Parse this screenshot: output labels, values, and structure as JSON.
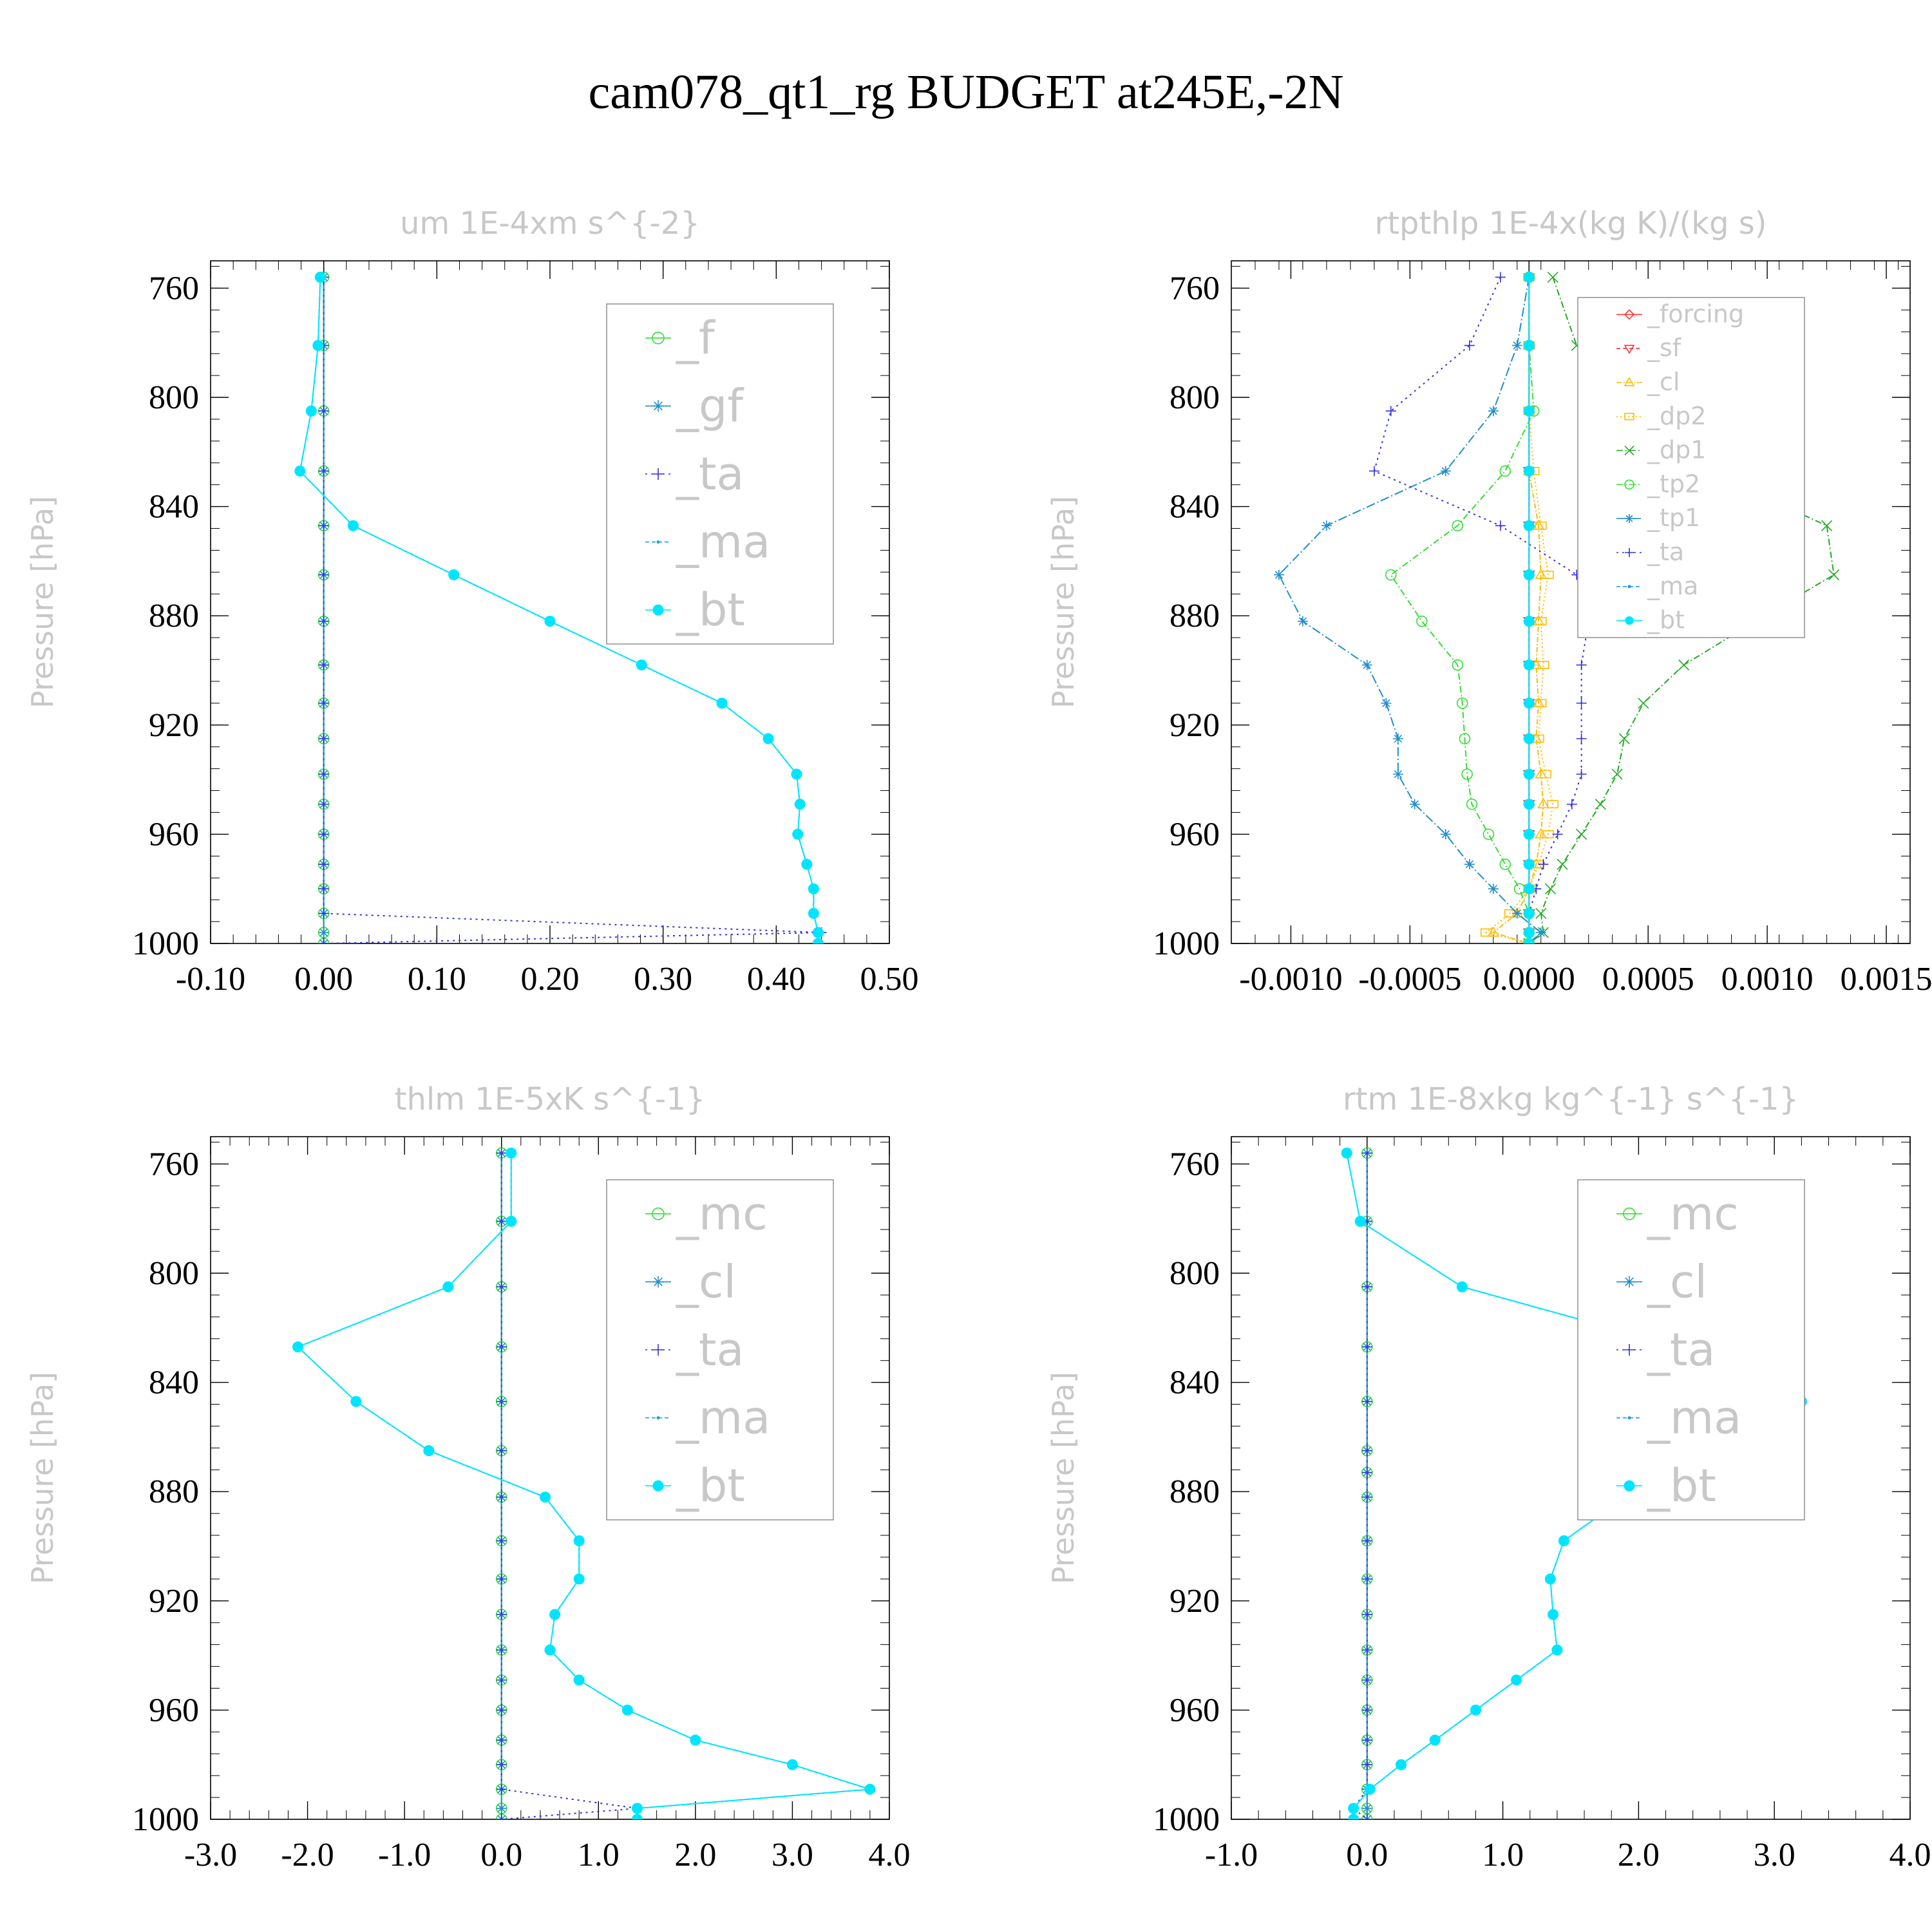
{
  "title": "cam078_qt1_rg  BUDGET at245E,-2N",
  "colors": {
    "f": "#33dd33",
    "gf": "#1f8fcf",
    "ta": "#3333dd",
    "ma": "#1aa0e0",
    "bt": "#00e5ff",
    "forcing": "#ff3333",
    "sf": "#ff3333",
    "cl_t": "#ffbb00",
    "dp2": "#ffbb00",
    "dp1": "#22aa22",
    "tp2": "#33dd33",
    "tp1": "#1f8fcf",
    "mc": "#33dd33",
    "cl": "#1f8fcf"
  },
  "chart_data": [
    {
      "type": "line",
      "title": "um  1E-4xm s^{-2}",
      "ylabel": "Pressure [hPa]",
      "xlim": [
        -0.1,
        0.5
      ],
      "ylim": [
        1000,
        750
      ],
      "xticks": [
        "-0.10",
        "0.00",
        "0.10",
        "0.20",
        "0.30",
        "0.40",
        "0.50"
      ],
      "yticks": [
        "760",
        "800",
        "840",
        "880",
        "920",
        "960",
        "1000"
      ],
      "y": [
        756,
        781,
        805,
        827,
        847,
        865,
        882,
        898,
        912,
        925,
        938,
        949,
        960,
        971,
        980,
        989,
        996,
        1000
      ],
      "series": [
        {
          "name": "_f",
          "color_key": "f",
          "marker": "circle",
          "dash": "",
          "values": [
            0,
            0,
            0,
            0,
            0,
            0,
            0,
            0,
            0,
            0,
            0,
            0,
            0,
            0,
            0,
            0,
            0,
            0
          ]
        },
        {
          "name": "_gf",
          "color_key": "gf",
          "marker": "star",
          "dash": "",
          "values": [
            0,
            0,
            0,
            0,
            0,
            0,
            0,
            0,
            0,
            0,
            0,
            0,
            0,
            0,
            0,
            0,
            0,
            0
          ]
        },
        {
          "name": "_ta",
          "color_key": "ta",
          "marker": "plus",
          "dash": "3,6",
          "values": [
            0,
            0,
            0,
            0,
            0,
            0,
            0,
            0,
            0,
            0,
            0,
            0,
            0,
            0,
            0,
            0,
            0.44,
            0
          ]
        },
        {
          "name": "_ma",
          "color_key": "ma",
          "marker": "dot",
          "dash": "6,4",
          "values": [
            -0.003,
            -0.005,
            -0.011,
            -0.021,
            0.026,
            0.115,
            0.2,
            0.281,
            0.352,
            0.393,
            0.418,
            0.421,
            0.419,
            0.427,
            0.433,
            0.433,
            0.437,
            0.437
          ]
        },
        {
          "name": "_bt",
          "color_key": "bt",
          "marker": "bigdot",
          "dash": "",
          "values": [
            -0.003,
            -0.005,
            -0.011,
            -0.021,
            0.026,
            0.115,
            0.2,
            0.281,
            0.352,
            0.393,
            0.418,
            0.421,
            0.419,
            0.427,
            0.433,
            0.433,
            0.437,
            0.437
          ]
        }
      ],
      "legend": [
        "_f",
        "_gf",
        "_ta",
        "_ma",
        "_bt"
      ]
    },
    {
      "type": "line",
      "title": "rtpthlp  1E-4x(kg K)/(kg s)",
      "ylabel": "Pressure [hPa]",
      "xlim": [
        -0.00125,
        0.0016
      ],
      "ylim": [
        1000,
        750
      ],
      "xticks": [
        "-0.0010",
        "-0.0005",
        "0.0000",
        "0.0005",
        "0.0010",
        "0.0015"
      ],
      "xtick_values": [
        -0.001,
        -0.0005,
        0,
        0.0005,
        0.001,
        0.0015
      ],
      "yticks": [
        "760",
        "800",
        "840",
        "880",
        "920",
        "960",
        "1000"
      ],
      "y": [
        756,
        781,
        805,
        827,
        847,
        865,
        882,
        898,
        912,
        925,
        938,
        949,
        960,
        971,
        980,
        989,
        996,
        1000
      ],
      "series": [
        {
          "name": "_forcing",
          "color_key": "forcing",
          "marker": "diamond",
          "dash": "",
          "values": [
            0,
            0,
            0,
            0,
            0,
            0,
            0,
            0,
            0,
            0,
            0,
            0,
            0,
            0,
            0,
            0,
            0,
            0
          ]
        },
        {
          "name": "_sf",
          "color_key": "sf",
          "marker": "tri-down",
          "dash": "6,4",
          "values": [
            0,
            0,
            0,
            0,
            0,
            0,
            0,
            0,
            0,
            0,
            0,
            0,
            0,
            0,
            0,
            0,
            0,
            0
          ]
        },
        {
          "name": "_cl",
          "color_key": "cl_t",
          "marker": "tri-up",
          "dash": "8,3,2,3",
          "values": [
            0,
            0,
            0,
            0,
            4e-05,
            5e-05,
            4e-05,
            3e-05,
            4e-05,
            3e-05,
            5e-05,
            6e-05,
            5e-05,
            3e-05,
            0,
            -5e-05,
            -0.00015,
            0
          ]
        },
        {
          "name": "_dp2",
          "color_key": "dp2",
          "marker": "square",
          "dash": "2,4",
          "values": [
            0,
            0,
            0,
            2e-05,
            5e-05,
            8e-05,
            5e-05,
            6e-05,
            5e-05,
            4e-05,
            7e-05,
            0.0001,
            8e-05,
            4e-05,
            0,
            -8e-05,
            -0.00018,
            0
          ]
        },
        {
          "name": "_dp1",
          "color_key": "dp1",
          "marker": "x",
          "dash": "10,4,2,4",
          "values": [
            0.0001,
            0.0002,
            0.00055,
            0.00075,
            0.00125,
            0.00128,
            0.00095,
            0.00065,
            0.00048,
            0.0004,
            0.00037,
            0.0003,
            0.00022,
            0.00014,
            9e-05,
            5e-05,
            6e-05,
            0
          ]
        },
        {
          "name": "_tp2",
          "color_key": "tp2",
          "marker": "circle",
          "dash": "10,4,2,4",
          "values": [
            0,
            0,
            2e-05,
            -0.0001,
            -0.0003,
            -0.00058,
            -0.00045,
            -0.0003,
            -0.00028,
            -0.00027,
            -0.00026,
            -0.00024,
            -0.00017,
            -0.0001,
            -4e-05,
            0,
            0,
            0
          ]
        },
        {
          "name": "_tp1",
          "color_key": "tp1",
          "marker": "star",
          "dash": "14,4,2,4",
          "values": [
            0,
            -5e-05,
            -0.00015,
            -0.00035,
            -0.00085,
            -0.00105,
            -0.00095,
            -0.00068,
            -0.0006,
            -0.00055,
            -0.00055,
            -0.00048,
            -0.00035,
            -0.00025,
            -0.00015,
            -5e-05,
            5e-05,
            0
          ]
        },
        {
          "name": "_ta",
          "color_key": "ta",
          "marker": "plus",
          "dash": "3,6",
          "values": [
            -0.00012,
            -0.00025,
            -0.00058,
            -0.00065,
            -0.00012,
            0.0002,
            0.00025,
            0.00022,
            0.00022,
            0.00022,
            0.00022,
            0.00018,
            0.00012,
            6e-05,
            3e-05,
            0,
            0,
            0
          ]
        },
        {
          "name": "_ma",
          "color_key": "ma",
          "marker": "dot",
          "dash": "6,4",
          "values": [
            0,
            0,
            0,
            0,
            0,
            0,
            0,
            0,
            0,
            0,
            0,
            0,
            0,
            0,
            0,
            0,
            0,
            0
          ]
        },
        {
          "name": "_bt",
          "color_key": "bt",
          "marker": "bigdot",
          "dash": "",
          "values": [
            0,
            0,
            0,
            0,
            0,
            0,
            0,
            0,
            0,
            0,
            0,
            0,
            0,
            0,
            0,
            0,
            0,
            0
          ]
        }
      ],
      "legend": [
        "_forcing",
        "_sf",
        "_cl",
        "_dp2",
        "_dp1",
        "_tp2",
        "_tp1",
        "_ta",
        "_ma",
        "_bt"
      ]
    },
    {
      "type": "line",
      "title": "thlm  1E-5xK s^{-1}",
      "ylabel": "Pressure [hPa]",
      "xlim": [
        -3.0,
        4.0
      ],
      "ylim": [
        1000,
        750
      ],
      "xticks": [
        "-3.0",
        "-2.0",
        "-1.0",
        "0.0",
        "1.0",
        "2.0",
        "3.0",
        "4.0"
      ],
      "yticks": [
        "760",
        "800",
        "840",
        "880",
        "920",
        "960",
        "1000"
      ],
      "y": [
        756,
        781,
        805,
        827,
        847,
        865,
        882,
        898,
        912,
        925,
        938,
        949,
        960,
        971,
        980,
        989,
        996,
        1000
      ],
      "series": [
        {
          "name": "_mc",
          "color_key": "mc",
          "marker": "circle",
          "dash": "",
          "values": [
            0,
            0,
            0,
            0,
            0,
            0,
            0,
            0,
            0,
            0,
            0,
            0,
            0,
            0,
            0,
            0,
            0,
            0
          ]
        },
        {
          "name": "_cl",
          "color_key": "cl",
          "marker": "star",
          "dash": "",
          "values": [
            0,
            0,
            0,
            0,
            0,
            0,
            0,
            0,
            0,
            0,
            0,
            0,
            0,
            0,
            0,
            0,
            0,
            0
          ]
        },
        {
          "name": "_ta",
          "color_key": "ta",
          "marker": "plus",
          "dash": "3,6",
          "values": [
            0,
            0,
            0,
            0,
            0,
            0,
            0,
            0,
            0,
            0,
            0,
            0,
            0,
            0,
            0,
            0,
            1.4,
            0
          ]
        },
        {
          "name": "_ma",
          "color_key": "ma",
          "marker": "dot",
          "dash": "6,4",
          "values": [
            0.1,
            0.1,
            -0.55,
            -2.1,
            -1.5,
            -0.75,
            0.45,
            0.8,
            0.8,
            0.55,
            0.5,
            0.8,
            1.3,
            2.0,
            3.0,
            3.8,
            1.4,
            1.4
          ]
        },
        {
          "name": "_bt",
          "color_key": "bt",
          "marker": "bigdot",
          "dash": "",
          "values": [
            0.1,
            0.1,
            -0.55,
            -2.1,
            -1.5,
            -0.75,
            0.45,
            0.8,
            0.8,
            0.55,
            0.5,
            0.8,
            1.3,
            2.0,
            3.0,
            3.8,
            1.4,
            1.4
          ]
        }
      ],
      "legend": [
        "_mc",
        "_cl",
        "_ta",
        "_ma",
        "_bt"
      ]
    },
    {
      "type": "line",
      "title": "rtm  1E-8xkg kg^{-1} s^{-1}",
      "ylabel": "Pressure [hPa]",
      "xlim": [
        -1.0,
        4.0
      ],
      "ylim": [
        1000,
        750
      ],
      "xticks": [
        "-1.0",
        "0.0",
        "1.0",
        "2.0",
        "3.0",
        "4.0"
      ],
      "yticks": [
        "760",
        "800",
        "840",
        "880",
        "920",
        "960",
        "1000"
      ],
      "y": [
        756,
        781,
        805,
        827,
        847,
        865,
        873,
        882,
        898,
        912,
        925,
        938,
        949,
        960,
        971,
        980,
        989,
        996,
        1000
      ],
      "series": [
        {
          "name": "_mc",
          "color_key": "mc",
          "marker": "circle",
          "dash": "",
          "values": [
            0,
            0,
            0,
            0,
            0,
            0,
            0,
            0,
            0,
            0,
            0,
            0,
            0,
            0,
            0,
            0,
            0,
            0,
            0
          ]
        },
        {
          "name": "_cl",
          "color_key": "cl",
          "marker": "star",
          "dash": "",
          "values": [
            0,
            0,
            0,
            0,
            0,
            0,
            0,
            0,
            0,
            0,
            0,
            0,
            0,
            0,
            0,
            0,
            0,
            0,
            0
          ]
        },
        {
          "name": "_ta",
          "color_key": "ta",
          "marker": "plus",
          "dash": "3,6",
          "values": [
            0,
            0,
            0,
            0,
            0,
            0,
            0,
            0,
            0,
            0,
            0,
            0,
            0,
            0,
            0,
            0,
            0,
            -0.1,
            0
          ]
        },
        {
          "name": "_ma",
          "color_key": "ma",
          "marker": "dot",
          "dash": "6,4",
          "values": [
            -0.15,
            -0.05,
            0.7,
            2.3,
            3.2,
            2.9,
            2.3,
            1.9,
            1.45,
            1.35,
            1.37,
            1.4,
            1.1,
            0.8,
            0.5,
            0.25,
            0.02,
            -0.1,
            -0.1
          ]
        },
        {
          "name": "_bt",
          "color_key": "bt",
          "marker": "bigdot",
          "dash": "",
          "values": [
            -0.15,
            -0.05,
            0.7,
            2.3,
            3.2,
            2.9,
            2.3,
            1.9,
            1.45,
            1.35,
            1.37,
            1.4,
            1.1,
            0.8,
            0.5,
            0.25,
            0.02,
            -0.1,
            -0.1
          ]
        }
      ],
      "legend": [
        "_mc",
        "_cl",
        "_ta",
        "_ma",
        "_bt"
      ]
    }
  ]
}
